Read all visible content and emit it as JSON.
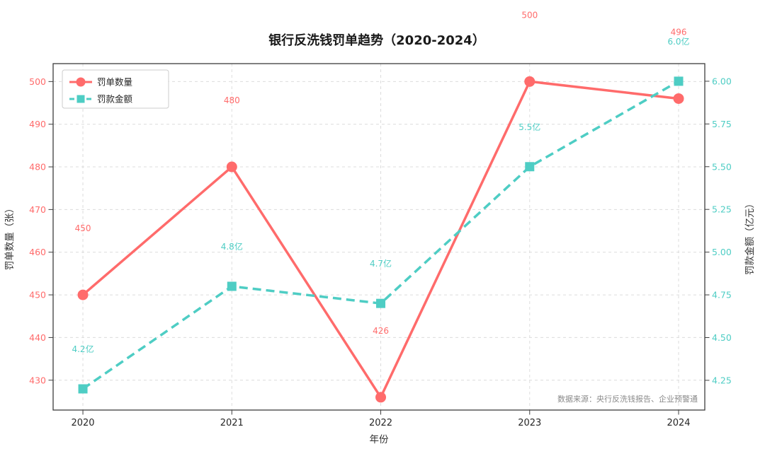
{
  "chart_data": {
    "type": "line",
    "title": "银行反洗钱罚单趋势（2020-2024）",
    "xlabel": "年份",
    "ylabel_left": "罚单数量（张）",
    "ylabel_right": "罚款金额（亿元）",
    "source_note": "数据来源：央行反洗钱报告、企业预警通",
    "x_categories": [
      "2020",
      "2021",
      "2022",
      "2023",
      "2024"
    ],
    "yticks_left": [
      430,
      440,
      450,
      460,
      470,
      480,
      490,
      500
    ],
    "yticks_right": [
      "4.25",
      "4.50",
      "4.75",
      "5.00",
      "5.25",
      "5.50",
      "5.75",
      "6.00"
    ],
    "ylim_left": [
      423.0,
      504.2
    ],
    "ylim_right": [
      4.076,
      6.103
    ],
    "grid": true,
    "legend_position": "upper-left",
    "colors": {
      "penalty_count": "#FF6B6B",
      "fine_amount": "#4ECDC4",
      "gridline": "#dcdcdc",
      "spine": "#3d3d3d"
    },
    "series": [
      {
        "name": "罚单数量",
        "axis": "left",
        "color": "#FF6B6B",
        "style": "solid",
        "marker": "circle",
        "values": [
          450,
          480,
          426,
          500,
          496
        ],
        "labels": [
          "450",
          "480",
          "426",
          "500",
          "496"
        ],
        "label_dy": -90
      },
      {
        "name": "罚款金额",
        "axis": "right",
        "color": "#4ECDC4",
        "style": "dashed",
        "marker": "square",
        "values": [
          4.2,
          4.8,
          4.7,
          5.5,
          6.0
        ],
        "labels": [
          "4.2亿",
          "4.8亿",
          "4.7亿",
          "5.5亿",
          "6.0亿"
        ],
        "label_dy": -52
      }
    ]
  }
}
